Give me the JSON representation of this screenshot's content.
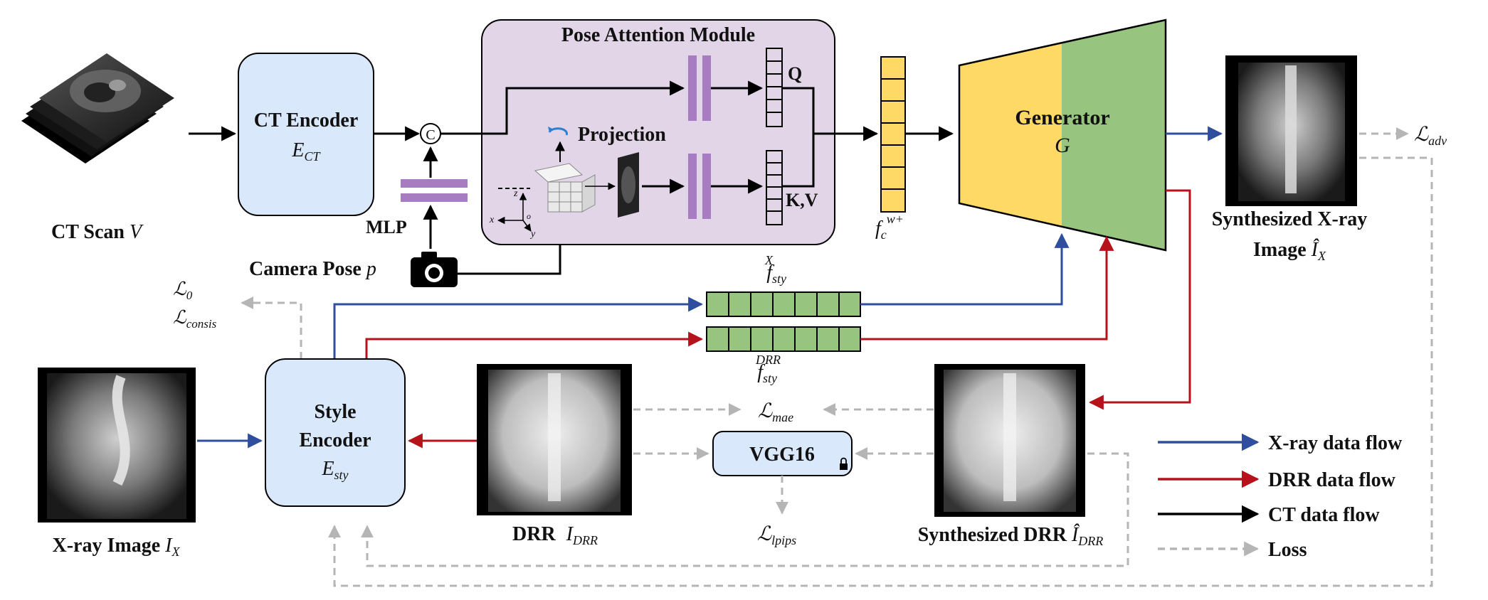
{
  "labels": {
    "ct_scan": "CT Scan",
    "ct_scan_var": "V",
    "ct_encoder_title": "CT Encoder",
    "ct_encoder_sym": "E",
    "ct_encoder_sub": "CT",
    "concat": "C",
    "mlp": "MLP",
    "camera_pose": "Camera Pose",
    "camera_pose_var": "p",
    "pam_title": "Pose Attention Module",
    "projection": "Projection",
    "q": "Q",
    "kv": "K,V",
    "axis_x": "x",
    "axis_y": "y",
    "axis_z": "z",
    "axis_o": "o",
    "fc_sym": "f",
    "fc_sub": "c",
    "fc_sup": "w+",
    "generator_title": "Generator",
    "generator_sym": "G",
    "synth_xray_line1": "Synthesized X-ray",
    "synth_xray_line2": "Image",
    "synth_xray_var": "Î",
    "synth_xray_sub": "X",
    "l_adv_sub": "adv",
    "l0_sub": "0",
    "lconsis_sub": "consis",
    "fsty_x_sym": "f",
    "fsty_x_sub": "sty",
    "fsty_x_sup": "X",
    "fsty_drr_sym": "f",
    "fsty_drr_sub": "sty",
    "fsty_drr_sup": "DRR",
    "xray_image": "X-ray Image",
    "xray_var": "I",
    "xray_sub": "X",
    "style_enc_line1": "Style",
    "style_enc_line2": "Encoder",
    "style_enc_sym": "E",
    "style_enc_sub": "sty",
    "drr": "DRR",
    "drr_var": "I",
    "drr_sub": "DRR",
    "l_mae_sub": "mae",
    "vgg16": "VGG16",
    "l_lpips_sub": "lpips",
    "synth_drr": "Synthesized DRR",
    "synth_drr_var": "Î",
    "synth_drr_sub": "DRR",
    "loss_symbol": "ℒ"
  },
  "legend": [
    {
      "label": "X-ray data flow",
      "color": "#2f4f9e",
      "style": "solid"
    },
    {
      "label": "DRR data flow",
      "color": "#b5121b",
      "style": "solid"
    },
    {
      "label": "CT data flow",
      "color": "#000000",
      "style": "solid"
    },
    {
      "label": "Loss",
      "color": "#b5b5b5",
      "style": "dashed"
    }
  ],
  "colors": {
    "ct_encoder_fill": "#dae8fc",
    "pam_fill": "#e1d5e7",
    "feature_yellow": "#ffd966",
    "style_green": "#97c47e",
    "generator_yellow": "#ffd966",
    "generator_green": "#97c47e",
    "mlp_purple": "#a77cc0",
    "xray_flow": "#2f4f9e",
    "drr_flow": "#b5121b",
    "loss_gray": "#b5b5b5"
  }
}
